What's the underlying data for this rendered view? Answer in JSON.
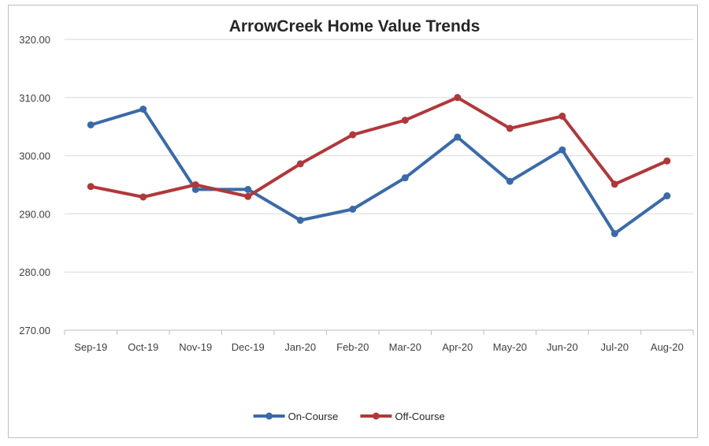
{
  "chart_data": {
    "type": "line",
    "title": "ArrowCreek Home Value Trends",
    "xlabel": "",
    "ylabel": "",
    "categories": [
      "Sep-19",
      "Oct-19",
      "Nov-19",
      "Dec-19",
      "Jan-20",
      "Feb-20",
      "Mar-20",
      "Apr-20",
      "May-20",
      "Jun-20",
      "Jul-20",
      "Aug-20"
    ],
    "ylim": [
      270,
      320
    ],
    "yticks": [
      "270.00",
      "280.00",
      "290.00",
      "300.00",
      "310.00",
      "320.00"
    ],
    "grid": "horizontal",
    "legend": "bottom",
    "series": [
      {
        "name": "On-Course",
        "color": "#3b6aa8",
        "values": [
          305.3,
          308.0,
          294.2,
          294.2,
          288.9,
          290.8,
          296.2,
          303.2,
          295.6,
          301.0,
          286.6,
          293.1
        ]
      },
      {
        "name": "Off-Course",
        "color": "#b0383b",
        "values": [
          294.7,
          292.9,
          295.0,
          293.0,
          298.6,
          303.6,
          306.1,
          310.0,
          304.7,
          306.8,
          295.1,
          299.1
        ]
      }
    ]
  }
}
